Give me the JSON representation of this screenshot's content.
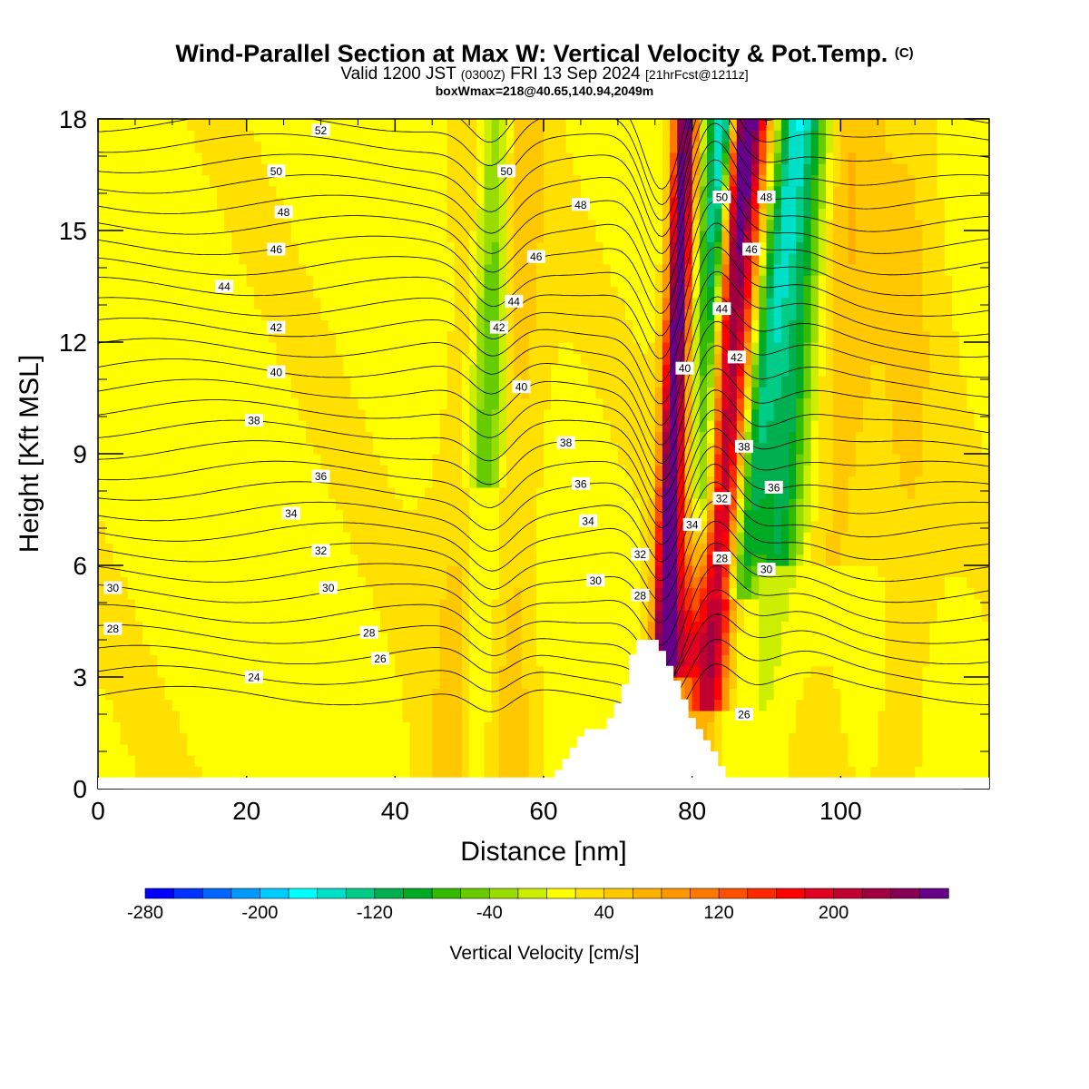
{
  "titles": {
    "main": "Wind-Parallel Section at Max W: Vertical Velocity & Pot.Temp.",
    "copyright": "(C)",
    "valid_pre": "Valid 1200 JST",
    "valid_utc": "(0300Z)",
    "valid_post": "FRI 13 Sep 2024",
    "forecast": "[21hrFcst@1211z]",
    "boxinfo": "boxWmax=218@40.65,140.94,2049m"
  },
  "chart_data": {
    "type": "heatmap",
    "xlabel": "Distance [nm]",
    "ylabel": "Height [Kft MSL]",
    "xlim": [
      0,
      120
    ],
    "ylim": [
      0,
      18
    ],
    "xticks": [
      "0",
      "20",
      "40",
      "60",
      "80",
      "100"
    ],
    "yticks": [
      "0",
      "3",
      "6",
      "9",
      "12",
      "15",
      "18"
    ],
    "colorbar": {
      "label": "Vertical Velocity [cm/s]",
      "ticks": [
        "-280",
        "-200",
        "-120",
        "-40",
        "40",
        "120",
        "200"
      ],
      "levels": [
        -280,
        -260,
        -240,
        -220,
        -200,
        -180,
        -160,
        -140,
        -120,
        -100,
        -80,
        -60,
        -40,
        -20,
        0,
        20,
        40,
        60,
        80,
        100,
        120,
        140,
        160,
        180,
        200,
        220,
        240,
        260,
        280
      ],
      "colors": [
        "#0000ff",
        "#0033ff",
        "#0066ff",
        "#0099ff",
        "#00ccff",
        "#00ffff",
        "#00e0c8",
        "#00cc88",
        "#00b050",
        "#00aa22",
        "#33bb00",
        "#66cc00",
        "#99dd00",
        "#ccee00",
        "#ffff00",
        "#ffe000",
        "#ffc800",
        "#ffb000",
        "#ff9800",
        "#ff7800",
        "#ff5000",
        "#ff2800",
        "#ff0000",
        "#e00020",
        "#c00030",
        "#a00040",
        "#880055",
        "#660088"
      ]
    },
    "terrain": {
      "distance_nm": [
        61,
        62,
        63,
        64,
        65,
        66,
        67,
        68,
        69,
        70,
        71,
        72,
        73,
        74,
        75,
        76,
        77,
        78,
        79,
        80,
        81,
        82,
        83,
        84,
        85
      ],
      "height_kft": [
        0.3,
        0.5,
        0.8,
        1.1,
        1.4,
        1.6,
        1.6,
        1.6,
        1.9,
        2.3,
        2.8,
        3.6,
        4.0,
        4.0,
        4.0,
        3.7,
        3.3,
        2.9,
        2.4,
        1.9,
        1.6,
        1.3,
        1.0,
        0.6,
        0.3
      ]
    },
    "theta_contour_labels": [
      {
        "text": "52",
        "x": 30,
        "y": 17.7
      },
      {
        "text": "50",
        "x": 24,
        "y": 16.6
      },
      {
        "text": "48",
        "x": 25,
        "y": 15.5
      },
      {
        "text": "46",
        "x": 24,
        "y": 14.5
      },
      {
        "text": "44",
        "x": 17,
        "y": 13.5
      },
      {
        "text": "42",
        "x": 24,
        "y": 12.4
      },
      {
        "text": "40",
        "x": 24,
        "y": 11.2
      },
      {
        "text": "38",
        "x": 21,
        "y": 9.9
      },
      {
        "text": "36",
        "x": 30,
        "y": 8.4
      },
      {
        "text": "34",
        "x": 26,
        "y": 7.4
      },
      {
        "text": "32",
        "x": 30,
        "y": 6.4
      },
      {
        "text": "30",
        "x": 31,
        "y": 5.4
      },
      {
        "text": "30",
        "x": 2,
        "y": 5.4
      },
      {
        "text": "28",
        "x": 2,
        "y": 4.3
      },
      {
        "text": "28",
        "x": 36.5,
        "y": 4.2
      },
      {
        "text": "26",
        "x": 38,
        "y": 3.5
      },
      {
        "text": "24",
        "x": 21,
        "y": 3.0
      },
      {
        "text": "50",
        "x": 55,
        "y": 16.6
      },
      {
        "text": "48",
        "x": 65,
        "y": 15.7
      },
      {
        "text": "46",
        "x": 59,
        "y": 14.3
      },
      {
        "text": "44",
        "x": 56,
        "y": 13.1
      },
      {
        "text": "42",
        "x": 54,
        "y": 12.4
      },
      {
        "text": "40",
        "x": 57,
        "y": 10.8
      },
      {
        "text": "38",
        "x": 63,
        "y": 9.3
      },
      {
        "text": "36",
        "x": 65,
        "y": 8.2
      },
      {
        "text": "34",
        "x": 66,
        "y": 7.2
      },
      {
        "text": "32",
        "x": 73,
        "y": 6.3
      },
      {
        "text": "30",
        "x": 67,
        "y": 5.6
      },
      {
        "text": "28",
        "x": 73,
        "y": 5.2
      },
      {
        "text": "50",
        "x": 84,
        "y": 15.9
      },
      {
        "text": "48",
        "x": 90,
        "y": 15.9
      },
      {
        "text": "46",
        "x": 88,
        "y": 14.5
      },
      {
        "text": "44",
        "x": 84,
        "y": 12.9
      },
      {
        "text": "42",
        "x": 86,
        "y": 11.6
      },
      {
        "text": "40",
        "x": 79,
        "y": 11.3
      },
      {
        "text": "38",
        "x": 87,
        "y": 9.2
      },
      {
        "text": "36",
        "x": 91,
        "y": 8.1
      },
      {
        "text": "34",
        "x": 80,
        "y": 7.1
      },
      {
        "text": "32",
        "x": 84,
        "y": 7.8
      },
      {
        "text": "30",
        "x": 90,
        "y": 5.9
      },
      {
        "text": "28",
        "x": 84,
        "y": 6.2
      },
      {
        "text": "26",
        "x": 87,
        "y": 2.0
      }
    ]
  }
}
